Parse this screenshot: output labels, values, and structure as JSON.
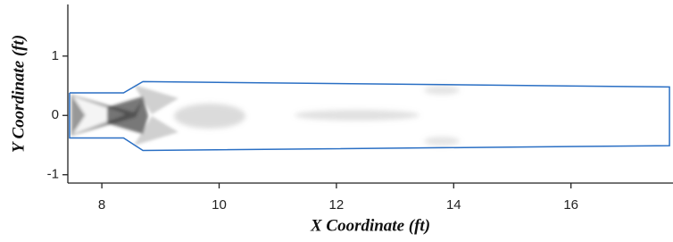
{
  "chart_data": {
    "type": "line",
    "xlabel": "X Coordinate (ft)",
    "ylabel": "Y Coordinate (ft)",
    "xlim": [
      7.42,
      17.74
    ],
    "ylim": [
      -1.14,
      1.87
    ],
    "xticks": [
      8,
      10,
      12,
      14,
      16
    ],
    "yticks": [
      -1,
      0,
      1
    ],
    "series": [
      {
        "color": "#2a6fc4",
        "x": [
          7.45,
          8.37,
          8.7,
          17.68,
          17.68,
          8.7,
          8.37,
          7.45,
          7.45
        ],
        "y": [
          0.38,
          0.38,
          0.57,
          0.48,
          -0.51,
          -0.59,
          -0.38,
          -0.38,
          0.38
        ]
      }
    ]
  }
}
